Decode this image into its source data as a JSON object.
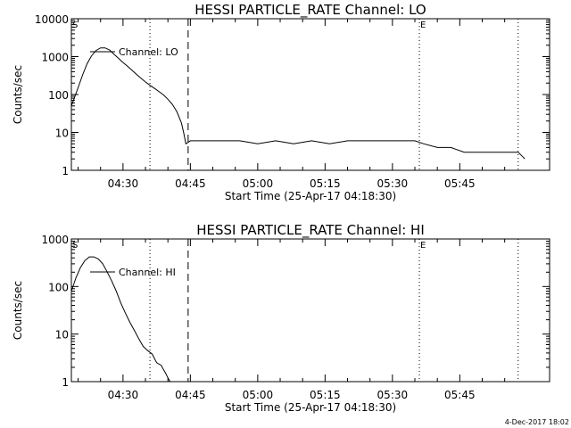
{
  "footer_date": "4-Dec-2017 18:02",
  "chart_data": [
    {
      "type": "line",
      "title": "HESSI PARTICLE_RATE Channel: LO",
      "xlabel": "Start Time (25-Apr-17 04:18:30)",
      "ylabel": "Counts/sec",
      "y_scale": "log",
      "ylim": [
        1,
        10000
      ],
      "xlim": [
        "04:18:30",
        "06:05:00"
      ],
      "x_ticks": [
        "04:30",
        "04:45",
        "05:00",
        "05:15",
        "05:30",
        "05:45"
      ],
      "y_ticks": [
        "1",
        "10",
        "100",
        "1000",
        "10000"
      ],
      "legend": [
        "Channel: LO"
      ],
      "markers": [
        {
          "label": "S",
          "time": "04:18:30"
        },
        {
          "label": "E",
          "time": "05:36:00"
        }
      ],
      "vlines": [
        {
          "time": "04:36:00",
          "style": "dotted"
        },
        {
          "time": "04:44:30",
          "style": "dashed"
        },
        {
          "time": "05:36:00",
          "style": "dotted"
        },
        {
          "time": "05:58:00",
          "style": "dotted"
        }
      ],
      "series": [
        {
          "x": [
            "04:18:30",
            "04:20:00",
            "04:21:00",
            "04:22:00",
            "04:23:00",
            "04:24:00",
            "04:25:00",
            "04:26:00",
            "04:27:00",
            "04:28:00",
            "04:29:00",
            "04:30:00",
            "04:31:00",
            "04:32:00",
            "04:33:00",
            "04:34:00",
            "04:35:00",
            "04:36:00",
            "04:37:00",
            "04:38:00",
            "04:39:00",
            "04:40:00",
            "04:41:00",
            "04:42:00",
            "04:43:00",
            "04:43:30",
            "04:44:00",
            "04:45:00",
            "04:47:00",
            "04:50:00",
            "04:53:00",
            "04:56:00",
            "05:00:00",
            "05:04:00",
            "05:08:00",
            "05:12:00",
            "05:16:00",
            "05:20:00",
            "05:24:00",
            "05:28:00",
            "05:32:00",
            "05:35:00",
            "05:37:00",
            "05:40:00",
            "05:43:00",
            "05:46:00",
            "05:49:00",
            "05:52:00",
            "05:55:00",
            "05:58:00",
            "05:59:30"
          ],
          "values": [
            50,
            150,
            330,
            650,
            1050,
            1450,
            1700,
            1700,
            1500,
            1150,
            900,
            700,
            560,
            440,
            340,
            270,
            215,
            175,
            145,
            120,
            98,
            75,
            55,
            35,
            18,
            10,
            5,
            6,
            6,
            6,
            6,
            6,
            5,
            6,
            5,
            6,
            5,
            6,
            6,
            6,
            6,
            6,
            5,
            4,
            4,
            3,
            3,
            3,
            3,
            3,
            2
          ]
        }
      ]
    },
    {
      "type": "line",
      "title": "HESSI PARTICLE_RATE Channel: HI",
      "xlabel": "Start Time (25-Apr-17 04:18:30)",
      "ylabel": "Counts/sec",
      "y_scale": "log",
      "ylim": [
        1,
        1000
      ],
      "xlim": [
        "04:18:30",
        "06:05:00"
      ],
      "x_ticks": [
        "04:30",
        "04:45",
        "05:00",
        "05:15",
        "05:30",
        "05:45"
      ],
      "y_ticks": [
        "1",
        "10",
        "100",
        "1000"
      ],
      "legend": [
        "Channel: HI"
      ],
      "markers": [
        {
          "label": "S",
          "time": "04:18:30"
        },
        {
          "label": "E",
          "time": "05:36:00"
        }
      ],
      "vlines": [
        {
          "time": "04:36:00",
          "style": "dotted"
        },
        {
          "time": "04:44:30",
          "style": "dashed"
        },
        {
          "time": "05:36:00",
          "style": "dotted"
        },
        {
          "time": "05:58:00",
          "style": "dotted"
        }
      ],
      "series": [
        {
          "x": [
            "04:18:30",
            "04:19:30",
            "04:20:30",
            "04:21:30",
            "04:22:30",
            "04:23:30",
            "04:24:30",
            "04:25:30",
            "04:26:30",
            "04:27:30",
            "04:28:30",
            "04:29:30",
            "04:30:30",
            "04:31:30",
            "04:32:30",
            "04:33:30",
            "04:34:30",
            "04:35:30",
            "04:36:30",
            "04:37:30",
            "04:38:30",
            "04:39:00",
            "04:39:30",
            "04:40:00",
            "04:40:30"
          ],
          "values": [
            80,
            150,
            250,
            350,
            420,
            420,
            380,
            300,
            200,
            130,
            80,
            45,
            28,
            18,
            12,
            8,
            5.5,
            4.5,
            3.8,
            2.5,
            2.2,
            1.8,
            1.5,
            1.2,
            1.0
          ]
        }
      ]
    }
  ]
}
